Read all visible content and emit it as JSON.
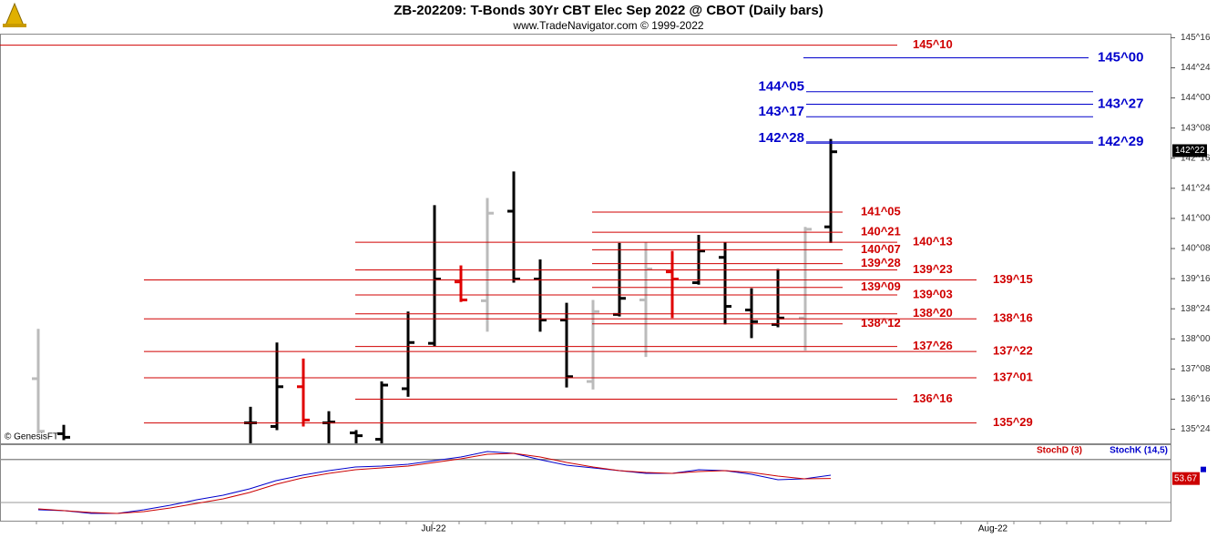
{
  "chart_data": {
    "type": "ohlc",
    "title": "ZB-202209:  T-Bonds 30Yr CBT Elec Sep 2022 @ CBOT  (Daily bars)",
    "subtitle": "www.TradeNavigator.com © 1999-2022",
    "credit": "© GenesisFT",
    "x_labels": [
      "Jul-22",
      "Aug-22"
    ],
    "ylim": [
      135.4,
      145.6
    ],
    "yticks": [
      {
        "value": 145.5,
        "label": "145^16"
      },
      {
        "value": 144.75,
        "label": "144^24"
      },
      {
        "value": 144,
        "label": "144^00"
      },
      {
        "value": 143.25,
        "label": "143^08"
      },
      {
        "value": 142.5,
        "label": "142^16"
      },
      {
        "value": 141.75,
        "label": "141^24"
      },
      {
        "value": 141,
        "label": "141^00"
      },
      {
        "value": 140.25,
        "label": "140^08"
      },
      {
        "value": 139.5,
        "label": "139^16"
      },
      {
        "value": 138.75,
        "label": "138^24"
      },
      {
        "value": 138,
        "label": "138^00"
      },
      {
        "value": 137.25,
        "label": "137^08"
      },
      {
        "value": 136.5,
        "label": "136^16"
      },
      {
        "value": 135.75,
        "label": "135^24"
      }
    ],
    "last_price": {
      "value": 142.6875,
      "label": "142^22"
    },
    "open": [
      137.01,
      135.64,
      135.91,
      135.82,
      136.81,
      135.91,
      135.66,
      135.5,
      136.76,
      137.89,
      139.42,
      138.95,
      141.18,
      139.49,
      138.47,
      136.94,
      138.61,
      138.97,
      139.67,
      139.4,
      140.03,
      138.72,
      138.36,
      138.52,
      140.79
    ],
    "high": [
      138.25,
      135.86,
      136.31,
      137.91,
      137.51,
      136.2,
      135.73,
      136.94,
      138.68,
      141.33,
      139.83,
      141.51,
      142.17,
      139.98,
      138.9,
      138.97,
      140.39,
      140.41,
      140.19,
      140.59,
      140.41,
      139.26,
      139.74,
      140.79,
      142.98
    ],
    "low": [
      135.64,
      135.48,
      135.37,
      135.73,
      135.82,
      135.37,
      135.37,
      135.37,
      136.56,
      137.82,
      138.92,
      138.18,
      139.4,
      138.18,
      136.79,
      136.74,
      138.56,
      137.55,
      138.52,
      139.35,
      138.36,
      138.02,
      138.29,
      137.71,
      140.39
    ],
    "close": [
      135.7,
      135.55,
      135.91,
      136.81,
      135.98,
      135.93,
      135.59,
      136.85,
      137.91,
      139.49,
      138.97,
      141.13,
      139.49,
      138.47,
      137.06,
      138.68,
      139.01,
      139.74,
      139.49,
      140.19,
      138.81,
      138.43,
      138.52,
      140.73,
      142.66
    ],
    "bar_colors": [
      "#bbbbbb",
      "#000000",
      "#000000",
      "#000000",
      "#e00000",
      "#000000",
      "#000000",
      "#000000",
      "#000000",
      "#000000",
      "#e00000",
      "#bbbbbb",
      "#000000",
      "#000000",
      "#000000",
      "#bbbbbb",
      "#000000",
      "#bbbbbb",
      "#e00000",
      "#000000",
      "#000000",
      "#000000",
      "#000000",
      "#bbbbbb",
      "#000000"
    ],
    "levels": [
      {
        "value": 145.3125,
        "label": "145^10",
        "color": "#d00000"
      },
      {
        "value": 141.15625,
        "label": "141^05",
        "color": "#d00000"
      },
      {
        "value": 140.65625,
        "label": "140^21",
        "color": "#d00000"
      },
      {
        "value": 140.40625,
        "label": "140^13",
        "color": "#d00000"
      },
      {
        "value": 140.21875,
        "label": "140^07",
        "color": "#d00000"
      },
      {
        "value": 139.875,
        "label": "139^28",
        "color": "#d00000"
      },
      {
        "value": 139.71875,
        "label": "139^23",
        "color": "#d00000"
      },
      {
        "value": 139.46875,
        "label": "139^15",
        "color": "#d00000"
      },
      {
        "value": 139.28125,
        "label": "139^09",
        "color": "#d00000"
      },
      {
        "value": 139.09375,
        "label": "139^03",
        "color": "#d00000"
      },
      {
        "value": 138.625,
        "label": "138^20",
        "color": "#d00000"
      },
      {
        "value": 138.5,
        "label": "138^16",
        "color": "#d00000"
      },
      {
        "value": 138.375,
        "label": "138^12",
        "color": "#d00000"
      },
      {
        "value": 137.8125,
        "label": "137^26",
        "color": "#d00000"
      },
      {
        "value": 137.6875,
        "label": "137^22",
        "color": "#d00000"
      },
      {
        "value": 137.03125,
        "label": "137^01",
        "color": "#d00000"
      },
      {
        "value": 136.5,
        "label": "136^16",
        "color": "#d00000"
      },
      {
        "value": 135.90625,
        "label": "135^29",
        "color": "#d00000"
      },
      {
        "value": 145,
        "label": "145^00",
        "color": "#0000cc"
      },
      {
        "value": 144.15625,
        "label": "144^05",
        "color": "#0000cc"
      },
      {
        "value": 143.84375,
        "label": "143^27",
        "color": "#0000cc"
      },
      {
        "value": 143.53125,
        "label": "143^17",
        "color": "#0000cc"
      },
      {
        "value": 142.875,
        "label": "142^28",
        "color": "#0000cc"
      },
      {
        "value": 142.90625,
        "label": "142^29",
        "color": "#0000cc"
      }
    ],
    "stoch": {
      "ylim": [
        0,
        100
      ],
      "levels": [
        20,
        80
      ],
      "series": [
        {
          "name": "StochK (14,5)",
          "color": "#0000cc",
          "values": [
            9.8,
            8.6,
            4.7,
            4.7,
            9.8,
            16.2,
            23.9,
            30.3,
            39.2,
            50.7,
            58.4,
            64.8,
            69.9,
            71.1,
            73.7,
            78.8,
            83.9,
            91.6,
            89.0,
            80.1,
            72.4,
            68.6,
            64.8,
            60.9,
            60.9,
            66.0,
            64.8,
            59.6,
            52.0,
            53.3,
            58.4
          ]
        },
        {
          "name": "StochD (3)",
          "color": "#cc0000",
          "values": [
            11.1,
            8.6,
            6.0,
            4.7,
            7.3,
            12.4,
            18.8,
            25.2,
            34.1,
            45.6,
            54.5,
            60.9,
            66.0,
            68.6,
            71.1,
            76.2,
            81.4,
            87.8,
            89.0,
            83.9,
            76.2,
            69.9,
            64.8,
            62.2,
            60.9,
            63.5,
            64.8,
            62.2,
            57.1,
            53.3,
            53.67
          ]
        }
      ]
    }
  }
}
